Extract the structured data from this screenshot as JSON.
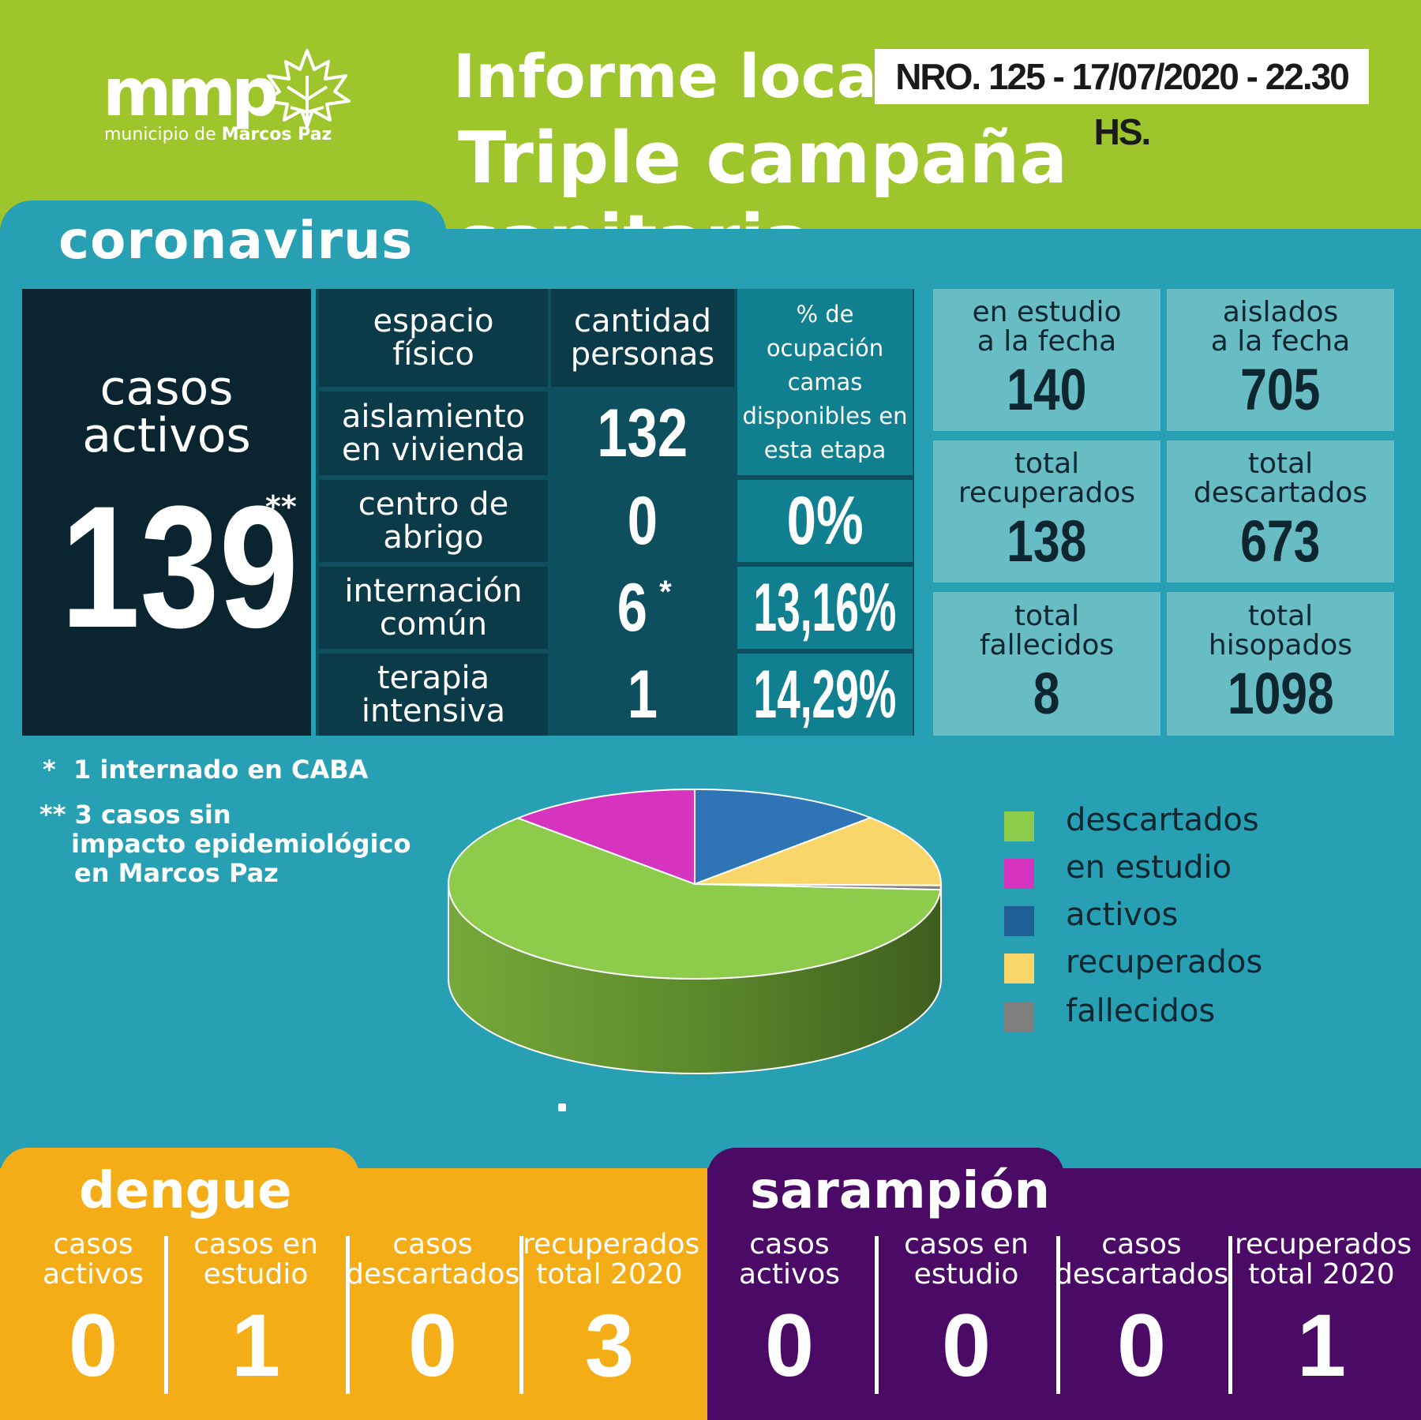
{
  "header": {
    "logo_text": "mmp",
    "logo_sub_prefix": "municipio de",
    "logo_sub_strong": "Marcos Paz",
    "title_line1": "Informe local",
    "badge": "NRO. 125 - 17/07/2020 - 22.30 HS.",
    "title_line2": "Triple campaña sanitaria"
  },
  "coronavirus": {
    "title": "coronavirus",
    "active_label": "casos activos",
    "active_label_line1": "casos",
    "active_label_line2": "activos",
    "active_value": "139",
    "active_mark": "**",
    "table": {
      "headers": {
        "space_line1": "espacio",
        "space_line2": "físico",
        "qty_line1": "cantidad",
        "qty_line2": "personas",
        "occ_line1": "% de",
        "occ_line2": "ocupación",
        "occ_line3": "camas",
        "occ_line4": "disponibles en",
        "occ_line5": "esta etapa"
      },
      "rows": [
        {
          "space_line1": "aislamiento",
          "space_line2": "en vivienda",
          "qty": "132",
          "mark": "",
          "pct": ""
        },
        {
          "space_line1": "centro de",
          "space_line2": "abrigo",
          "qty": "0",
          "mark": "",
          "pct": "0%"
        },
        {
          "space_line1": "internación",
          "space_line2": "común",
          "qty": "6",
          "mark": "*",
          "pct": "13,16%"
        },
        {
          "space_line1": "terapia",
          "space_line2": "intensiva",
          "qty": "1",
          "mark": "",
          "pct": "14,29%"
        }
      ]
    },
    "stats": [
      {
        "line1": "en estudio",
        "line2": "a la fecha",
        "value": "140"
      },
      {
        "line1": "aislados",
        "line2": "a la fecha",
        "value": "705"
      },
      {
        "line1": "total",
        "line2": "recuperados",
        "value": "138"
      },
      {
        "line1": "total",
        "line2": "descartados",
        "value": "673"
      },
      {
        "line1": "total",
        "line2": "fallecidos",
        "value": "8"
      },
      {
        "line1": "total",
        "line2": "hisopados",
        "value": "1098"
      }
    ],
    "notes": {
      "note1_mark": "*",
      "note1_text": "1 internado en CABA",
      "note2_mark": "**",
      "note2_line1": "3 casos sin",
      "note2_line2": "impacto epidemiológico",
      "note2_line3": "en Marcos Paz"
    }
  },
  "chart_data": {
    "type": "pie",
    "labels": [
      "descartados",
      "en estudio",
      "activos",
      "recuperados",
      "fallecidos"
    ],
    "values": [
      673,
      140,
      139,
      138,
      8
    ],
    "colors": [
      "#8dcc4b",
      "#d633bf",
      "#2f74b5",
      "#f8d66a",
      "#7f7f7f"
    ],
    "legend_position": "right"
  },
  "dengue": {
    "title": "dengue",
    "color": "#f5ad17",
    "items": [
      {
        "line1": "casos",
        "line2": "activos",
        "value": "0"
      },
      {
        "line1": "casos en",
        "line2": "estudio",
        "value": "1"
      },
      {
        "line1": "casos",
        "line2": "descartados",
        "value": "0"
      },
      {
        "line1": "recuperados",
        "line2": "total 2020",
        "value": "3"
      }
    ]
  },
  "sarampion": {
    "title": "sarampión",
    "color": "#4b0a66",
    "items": [
      {
        "line1": "casos",
        "line2": "activos",
        "value": "0"
      },
      {
        "line1": "casos en",
        "line2": "estudio",
        "value": "0"
      },
      {
        "line1": "casos",
        "line2": "descartados",
        "value": "0"
      },
      {
        "line1": "recuperados",
        "line2": "total 2020",
        "value": "1"
      }
    ]
  }
}
